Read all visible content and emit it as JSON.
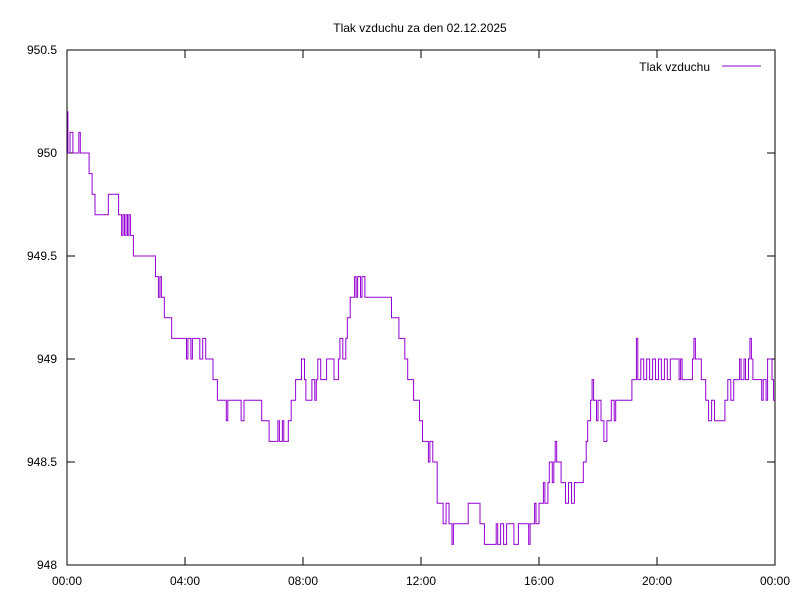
{
  "chart_data": {
    "type": "line",
    "title": "Tlak vzduchu za den 02.12.2025",
    "xlabel": "",
    "ylabel": "",
    "x_unit": "hours",
    "xlim": [
      0,
      24
    ],
    "ylim": [
      948,
      950.5
    ],
    "x_ticks": [
      0,
      4,
      8,
      12,
      16,
      20,
      24
    ],
    "x_tick_labels": [
      "00:00",
      "04:00",
      "08:00",
      "12:00",
      "16:00",
      "20:00",
      "00:00"
    ],
    "y_ticks": [
      948,
      948.5,
      949,
      949.5,
      950,
      950.5
    ],
    "y_tick_labels": [
      "948",
      "948.5",
      "949",
      "949.5",
      "950",
      "950.5"
    ],
    "grid": false,
    "legend_position": "top-right",
    "series": [
      {
        "name": "Tlak vzduchu",
        "color": "#9400d3",
        "points": [
          [
            0.0,
            950.2
          ],
          [
            0.03,
            950.0
          ],
          [
            0.1,
            950.1
          ],
          [
            0.2,
            950.0
          ],
          [
            0.35,
            950.0
          ],
          [
            0.4,
            950.1
          ],
          [
            0.45,
            950.0
          ],
          [
            0.75,
            949.9
          ],
          [
            0.85,
            949.8
          ],
          [
            0.95,
            949.7
          ],
          [
            1.35,
            949.7
          ],
          [
            1.4,
            949.8
          ],
          [
            1.7,
            949.8
          ],
          [
            1.75,
            949.7
          ],
          [
            1.85,
            949.6
          ],
          [
            1.9,
            949.7
          ],
          [
            1.95,
            949.6
          ],
          [
            2.0,
            949.7
          ],
          [
            2.05,
            949.6
          ],
          [
            2.1,
            949.7
          ],
          [
            2.15,
            949.6
          ],
          [
            2.25,
            949.5
          ],
          [
            2.95,
            949.5
          ],
          [
            3.0,
            949.4
          ],
          [
            3.1,
            949.3
          ],
          [
            3.15,
            949.4
          ],
          [
            3.2,
            949.3
          ],
          [
            3.3,
            949.2
          ],
          [
            3.55,
            949.1
          ],
          [
            4.0,
            949.1
          ],
          [
            4.05,
            949.0
          ],
          [
            4.1,
            949.1
          ],
          [
            4.2,
            949.0
          ],
          [
            4.25,
            949.1
          ],
          [
            4.45,
            949.1
          ],
          [
            4.5,
            949.0
          ],
          [
            4.6,
            949.1
          ],
          [
            4.7,
            949.0
          ],
          [
            4.95,
            948.9
          ],
          [
            5.05,
            948.9
          ],
          [
            5.1,
            948.8
          ],
          [
            5.3,
            948.8
          ],
          [
            5.4,
            948.7
          ],
          [
            5.45,
            948.8
          ],
          [
            5.85,
            948.8
          ],
          [
            5.9,
            948.7
          ],
          [
            6.0,
            948.8
          ],
          [
            6.3,
            948.8
          ],
          [
            6.5,
            948.8
          ],
          [
            6.6,
            948.7
          ],
          [
            6.8,
            948.7
          ],
          [
            6.85,
            948.6
          ],
          [
            7.1,
            948.6
          ],
          [
            7.15,
            948.7
          ],
          [
            7.2,
            948.6
          ],
          [
            7.3,
            948.7
          ],
          [
            7.35,
            948.6
          ],
          [
            7.5,
            948.7
          ],
          [
            7.6,
            948.8
          ],
          [
            7.7,
            948.8
          ],
          [
            7.75,
            948.9
          ],
          [
            7.9,
            948.9
          ],
          [
            7.95,
            949.0
          ],
          [
            8.05,
            948.9
          ],
          [
            8.1,
            948.8
          ],
          [
            8.3,
            948.9
          ],
          [
            8.4,
            948.8
          ],
          [
            8.45,
            948.9
          ],
          [
            8.5,
            949.0
          ],
          [
            8.6,
            948.9
          ],
          [
            8.75,
            948.9
          ],
          [
            8.8,
            949.0
          ],
          [
            9.0,
            949.0
          ],
          [
            9.05,
            948.9
          ],
          [
            9.2,
            949.0
          ],
          [
            9.25,
            949.1
          ],
          [
            9.35,
            949.0
          ],
          [
            9.45,
            949.1
          ],
          [
            9.5,
            949.2
          ],
          [
            9.6,
            949.3
          ],
          [
            9.7,
            949.3
          ],
          [
            9.75,
            949.4
          ],
          [
            9.8,
            949.3
          ],
          [
            9.85,
            949.4
          ],
          [
            9.95,
            949.3
          ],
          [
            10.0,
            949.4
          ],
          [
            10.1,
            949.3
          ],
          [
            10.9,
            949.3
          ],
          [
            11.0,
            949.2
          ],
          [
            11.15,
            949.2
          ],
          [
            11.25,
            949.1
          ],
          [
            11.35,
            949.1
          ],
          [
            11.45,
            949.0
          ],
          [
            11.55,
            948.9
          ],
          [
            11.65,
            948.9
          ],
          [
            11.75,
            948.8
          ],
          [
            11.85,
            948.8
          ],
          [
            11.95,
            948.7
          ],
          [
            12.05,
            948.6
          ],
          [
            12.2,
            948.6
          ],
          [
            12.25,
            948.5
          ],
          [
            12.3,
            948.6
          ],
          [
            12.4,
            948.5
          ],
          [
            12.55,
            948.3
          ],
          [
            12.65,
            948.3
          ],
          [
            12.75,
            948.2
          ],
          [
            12.85,
            948.3
          ],
          [
            12.95,
            948.2
          ],
          [
            13.05,
            948.1
          ],
          [
            13.1,
            948.2
          ],
          [
            13.2,
            948.2
          ],
          [
            13.55,
            948.2
          ],
          [
            13.6,
            948.3
          ],
          [
            13.95,
            948.3
          ],
          [
            14.0,
            948.2
          ],
          [
            14.1,
            948.2
          ],
          [
            14.15,
            948.1
          ],
          [
            14.5,
            948.1
          ],
          [
            14.55,
            948.2
          ],
          [
            14.6,
            948.1
          ],
          [
            14.7,
            948.2
          ],
          [
            14.8,
            948.1
          ],
          [
            14.9,
            948.2
          ],
          [
            15.1,
            948.2
          ],
          [
            15.15,
            948.1
          ],
          [
            15.3,
            948.2
          ],
          [
            15.6,
            948.2
          ],
          [
            15.65,
            948.1
          ],
          [
            15.7,
            948.2
          ],
          [
            15.8,
            948.2
          ],
          [
            15.85,
            948.3
          ],
          [
            15.9,
            948.2
          ],
          [
            16.0,
            948.3
          ],
          [
            16.1,
            948.3
          ],
          [
            16.15,
            948.4
          ],
          [
            16.2,
            948.3
          ],
          [
            16.3,
            948.4
          ],
          [
            16.35,
            948.5
          ],
          [
            16.45,
            948.4
          ],
          [
            16.5,
            948.5
          ],
          [
            16.55,
            948.6
          ],
          [
            16.6,
            948.5
          ],
          [
            16.75,
            948.4
          ],
          [
            16.85,
            948.4
          ],
          [
            16.9,
            948.3
          ],
          [
            17.0,
            948.4
          ],
          [
            17.1,
            948.3
          ],
          [
            17.2,
            948.4
          ],
          [
            17.45,
            948.4
          ],
          [
            17.5,
            948.5
          ],
          [
            17.6,
            948.6
          ],
          [
            17.65,
            948.7
          ],
          [
            17.75,
            948.8
          ],
          [
            17.8,
            948.9
          ],
          [
            17.85,
            948.8
          ],
          [
            17.95,
            948.7
          ],
          [
            18.0,
            948.8
          ],
          [
            18.1,
            948.7
          ],
          [
            18.2,
            948.6
          ],
          [
            18.3,
            948.7
          ],
          [
            18.4,
            948.7
          ],
          [
            18.45,
            948.8
          ],
          [
            18.55,
            948.7
          ],
          [
            18.6,
            948.8
          ],
          [
            19.1,
            948.8
          ],
          [
            19.15,
            948.9
          ],
          [
            19.25,
            948.9
          ],
          [
            19.3,
            949.1
          ],
          [
            19.35,
            948.9
          ],
          [
            19.45,
            949.0
          ],
          [
            19.55,
            948.9
          ],
          [
            19.65,
            949.0
          ],
          [
            19.75,
            948.9
          ],
          [
            19.85,
            949.0
          ],
          [
            19.95,
            948.9
          ],
          [
            20.05,
            949.0
          ],
          [
            20.15,
            948.9
          ],
          [
            20.25,
            949.0
          ],
          [
            20.35,
            948.9
          ],
          [
            20.45,
            949.0
          ],
          [
            20.7,
            949.0
          ],
          [
            20.75,
            948.9
          ],
          [
            20.8,
            949.0
          ],
          [
            20.85,
            948.9
          ],
          [
            21.15,
            948.9
          ],
          [
            21.2,
            949.0
          ],
          [
            21.25,
            949.1
          ],
          [
            21.3,
            949.0
          ],
          [
            21.45,
            949.0
          ],
          [
            21.5,
            948.9
          ],
          [
            21.6,
            948.9
          ],
          [
            21.65,
            948.8
          ],
          [
            21.75,
            948.7
          ],
          [
            21.85,
            948.8
          ],
          [
            21.95,
            948.7
          ],
          [
            22.25,
            948.7
          ],
          [
            22.3,
            948.8
          ],
          [
            22.4,
            948.9
          ],
          [
            22.5,
            948.8
          ],
          [
            22.6,
            948.9
          ],
          [
            22.75,
            948.9
          ],
          [
            22.8,
            949.0
          ],
          [
            22.85,
            948.9
          ],
          [
            22.95,
            949.0
          ],
          [
            23.0,
            948.9
          ],
          [
            23.05,
            948.9
          ],
          [
            23.1,
            949.0
          ],
          [
            23.15,
            949.1
          ],
          [
            23.2,
            949.0
          ],
          [
            23.25,
            948.9
          ],
          [
            23.5,
            948.9
          ],
          [
            23.55,
            948.8
          ],
          [
            23.6,
            948.9
          ],
          [
            23.7,
            948.8
          ],
          [
            23.75,
            949.0
          ],
          [
            23.85,
            949.0
          ],
          [
            23.9,
            948.9
          ],
          [
            23.95,
            948.8
          ]
        ]
      }
    ]
  }
}
